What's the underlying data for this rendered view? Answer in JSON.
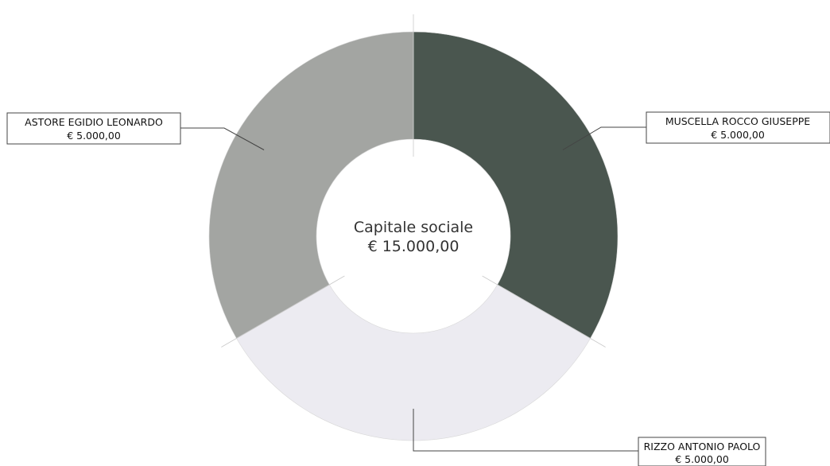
{
  "chart_data": {
    "type": "pie",
    "variant": "donut",
    "center_label": {
      "title": "Capitale sociale",
      "total": "€ 15.000,00"
    },
    "slices": [
      {
        "name": "MUSCELLA ROCCO GIUSEPPE",
        "value": 5000,
        "value_label": "€ 5.000,00",
        "color": "#4a564f"
      },
      {
        "name": "RIZZO ANTONIO PAOLO",
        "value": 5000,
        "value_label": "€ 5.000,00",
        "color": "#ecebf1"
      },
      {
        "name": "ASTORE EGIDIO LEONARDO",
        "value": 5000,
        "value_label": "€ 5.000,00",
        "color": "#a3a5a2"
      }
    ],
    "legend": "callouts"
  }
}
